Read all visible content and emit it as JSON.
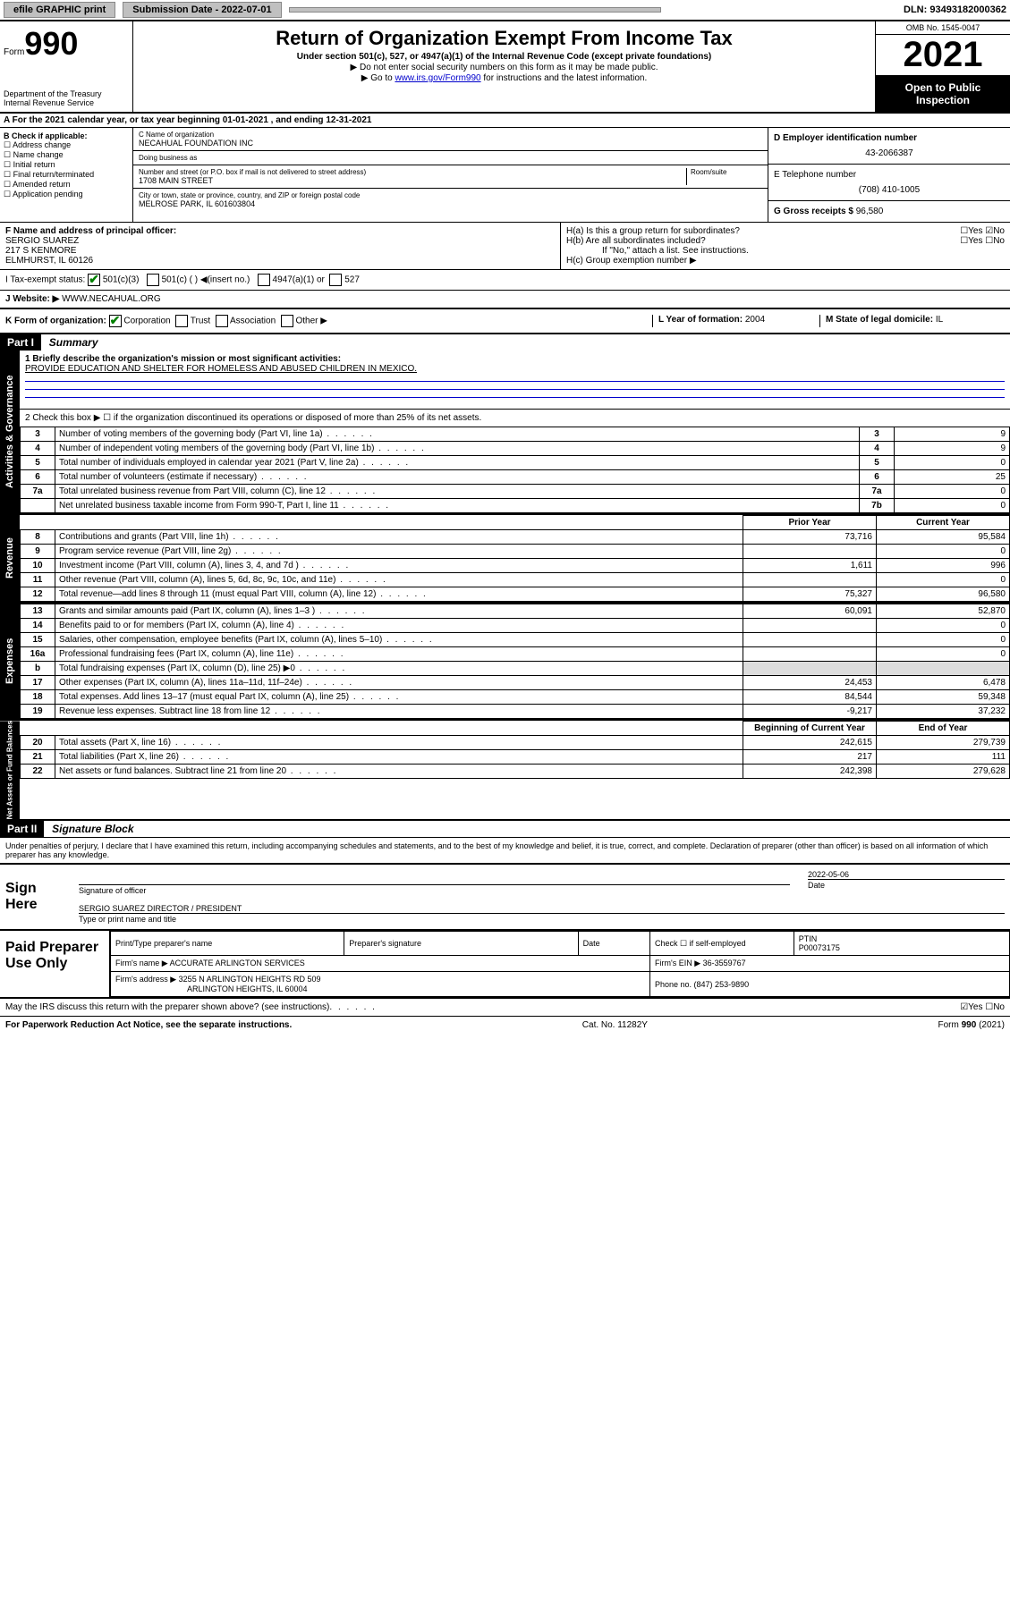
{
  "topbar": {
    "efile": "efile GRAPHIC print",
    "submission_label": "Submission Date - 2022-07-01",
    "dln": "DLN: 93493182000362"
  },
  "header": {
    "form_word": "Form",
    "form_num": "990",
    "dept": "Department of the Treasury\nInternal Revenue Service",
    "title": "Return of Organization Exempt From Income Tax",
    "sub1": "Under section 501(c), 527, or 4947(a)(1) of the Internal Revenue Code (except private foundations)",
    "sub2": "▶ Do not enter social security numbers on this form as it may be made public.",
    "sub3_prefix": "▶ Go to ",
    "sub3_link": "www.irs.gov/Form990",
    "sub3_suffix": " for instructions and the latest information.",
    "omb": "OMB No. 1545-0047",
    "year": "2021",
    "open": "Open to Public Inspection"
  },
  "tax_year_line": "A For the 2021 calendar year, or tax year beginning 01-01-2021   , and ending 12-31-2021",
  "section_b": {
    "label": "B Check if applicable:",
    "opts": [
      "Address change",
      "Name change",
      "Initial return",
      "Final return/terminated",
      "Amended return",
      "Application pending"
    ],
    "c_label": "C Name of organization",
    "c_name": "NECAHUAL FOUNDATION INC",
    "dba_label": "Doing business as",
    "dba": "",
    "addr_label": "Number and street (or P.O. box if mail is not delivered to street address)",
    "addr_room": "Room/suite",
    "addr": "1708 MAIN STREET",
    "city_label": "City or town, state or province, country, and ZIP or foreign postal code",
    "city": "MELROSE PARK, IL  601603804",
    "d_label": "D Employer identification number",
    "d_val": "43-2066387",
    "e_label": "E Telephone number",
    "e_val": "(708) 410-1005",
    "g_label": "G Gross receipts $",
    "g_val": "96,580"
  },
  "row_f": {
    "f_label": "F  Name and address of principal officer:",
    "f_name": "SERGIO SUAREZ",
    "f_addr1": "217 S KENMORE",
    "f_addr2": "ELMHURST, IL  60126",
    "ha": "H(a)  Is this a group return for subordinates?",
    "ha_yn": "☐Yes ☑No",
    "hb": "H(b)  Are all subordinates included?",
    "hb_yn": "☐Yes ☐No",
    "hb_note": "If \"No,\" attach a list. See instructions.",
    "hc": "H(c)  Group exemption number ▶"
  },
  "row_i": {
    "i_label": "I   Tax-exempt status:",
    "i_501c3": "501(c)(3)",
    "i_501c": "501(c) (  ) ◀(insert no.)",
    "i_4947": "4947(a)(1) or",
    "i_527": "527"
  },
  "row_j": {
    "label": "J   Website: ▶",
    "val": "WWW.NECAHUAL.ORG"
  },
  "row_k": {
    "label": "K Form of organization:",
    "corp": "Corporation",
    "trust": "Trust",
    "assoc": "Association",
    "other": "Other ▶",
    "l_label": "L Year of formation:",
    "l_val": "2004",
    "m_label": "M State of legal domicile:",
    "m_val": "IL"
  },
  "part1": {
    "hdr": "Part I",
    "title": "Summary",
    "q1": "1  Briefly describe the organization's mission or most significant activities:",
    "mission": "PROVIDE EDUCATION AND SHELTER FOR HOMELESS AND ABUSED CHILDREN IN MEXICO.",
    "q2": "2   Check this box ▶ ☐  if the organization discontinued its operations or disposed of more than 25% of its net assets.",
    "rows_gov": [
      {
        "n": "3",
        "d": "Number of voting members of the governing body (Part VI, line 1a)",
        "c": "3",
        "v": "9"
      },
      {
        "n": "4",
        "d": "Number of independent voting members of the governing body (Part VI, line 1b)",
        "c": "4",
        "v": "9"
      },
      {
        "n": "5",
        "d": "Total number of individuals employed in calendar year 2021 (Part V, line 2a)",
        "c": "5",
        "v": "0"
      },
      {
        "n": "6",
        "d": "Total number of volunteers (estimate if necessary)",
        "c": "6",
        "v": "25"
      },
      {
        "n": "7a",
        "d": "Total unrelated business revenue from Part VIII, column (C), line 12",
        "c": "7a",
        "v": "0"
      },
      {
        "n": "",
        "d": "Net unrelated business taxable income from Form 990-T, Part I, line 11",
        "c": "7b",
        "v": "0"
      }
    ],
    "prior_hdr": "Prior Year",
    "curr_hdr": "Current Year",
    "rev_rows": [
      {
        "n": "8",
        "d": "Contributions and grants (Part VIII, line 1h)",
        "p": "73,716",
        "c": "95,584"
      },
      {
        "n": "9",
        "d": "Program service revenue (Part VIII, line 2g)",
        "p": "",
        "c": "0"
      },
      {
        "n": "10",
        "d": "Investment income (Part VIII, column (A), lines 3, 4, and 7d )",
        "p": "1,611",
        "c": "996"
      },
      {
        "n": "11",
        "d": "Other revenue (Part VIII, column (A), lines 5, 6d, 8c, 9c, 10c, and 11e)",
        "p": "",
        "c": "0"
      },
      {
        "n": "12",
        "d": "Total revenue—add lines 8 through 11 (must equal Part VIII, column (A), line 12)",
        "p": "75,327",
        "c": "96,580"
      }
    ],
    "exp_rows": [
      {
        "n": "13",
        "d": "Grants and similar amounts paid (Part IX, column (A), lines 1–3 )",
        "p": "60,091",
        "c": "52,870"
      },
      {
        "n": "14",
        "d": "Benefits paid to or for members (Part IX, column (A), line 4)",
        "p": "",
        "c": "0"
      },
      {
        "n": "15",
        "d": "Salaries, other compensation, employee benefits (Part IX, column (A), lines 5–10)",
        "p": "",
        "c": "0"
      },
      {
        "n": "16a",
        "d": "Professional fundraising fees (Part IX, column (A), line 11e)",
        "p": "",
        "c": "0"
      },
      {
        "n": "b",
        "d": "Total fundraising expenses (Part IX, column (D), line 25)  ▶0",
        "p": "NOVAL",
        "c": "NOVAL"
      },
      {
        "n": "17",
        "d": "Other expenses (Part IX, column (A), lines 11a–11d, 11f–24e)",
        "p": "24,453",
        "c": "6,478"
      },
      {
        "n": "18",
        "d": "Total expenses. Add lines 13–17 (must equal Part IX, column (A), line 25)",
        "p": "84,544",
        "c": "59,348"
      },
      {
        "n": "19",
        "d": "Revenue less expenses. Subtract line 18 from line 12",
        "p": "-9,217",
        "c": "37,232"
      }
    ],
    "na_hdr_p": "Beginning of Current Year",
    "na_hdr_c": "End of Year",
    "na_rows": [
      {
        "n": "20",
        "d": "Total assets (Part X, line 16)",
        "p": "242,615",
        "c": "279,739"
      },
      {
        "n": "21",
        "d": "Total liabilities (Part X, line 26)",
        "p": "217",
        "c": "111"
      },
      {
        "n": "22",
        "d": "Net assets or fund balances. Subtract line 21 from line 20",
        "p": "242,398",
        "c": "279,628"
      }
    ]
  },
  "part2": {
    "hdr": "Part II",
    "title": "Signature Block",
    "decl": "Under penalties of perjury, I declare that I have examined this return, including accompanying schedules and statements, and to the best of my knowledge and belief, it is true, correct, and complete. Declaration of preparer (other than officer) is based on all information of which preparer has any knowledge.",
    "sign_here": "Sign Here",
    "sig_officer": "Signature of officer",
    "date_label": "Date",
    "date_val": "2022-05-06",
    "name_title": "SERGIO SUAREZ  DIRECTOR / PRESIDENT",
    "name_sub": "Type or print name and title",
    "paid_prep": "Paid Preparer Use Only",
    "pp_name_hdr": "Print/Type preparer's name",
    "pp_sig_hdr": "Preparer's signature",
    "pp_date_hdr": "Date",
    "pp_check": "Check ☐ if self-employed",
    "pp_ptin_hdr": "PTIN",
    "pp_ptin": "P00073175",
    "firm_name_label": "Firm's name    ▶",
    "firm_name": "ACCURATE ARLINGTON SERVICES",
    "firm_ein_label": "Firm's EIN ▶",
    "firm_ein": "36-3559767",
    "firm_addr_label": "Firm's address ▶",
    "firm_addr1": "3255 N ARLINGTON HEIGHTS RD 509",
    "firm_addr2": "ARLINGTON HEIGHTS, IL  60004",
    "phone_label": "Phone no.",
    "phone_val": "(847) 253-9890"
  },
  "footer": {
    "discuss": "May the IRS discuss this return with the preparer shown above? (see instructions)",
    "yn": "☑Yes  ☐No",
    "pra": "For Paperwork Reduction Act Notice, see the separate instructions.",
    "cat": "Cat. No. 11282Y",
    "form": "Form 990 (2021)"
  },
  "side_tabs": {
    "ag": "Activities & Governance",
    "rev": "Revenue",
    "exp": "Expenses",
    "na": "Net Assets or Fund Balances"
  }
}
